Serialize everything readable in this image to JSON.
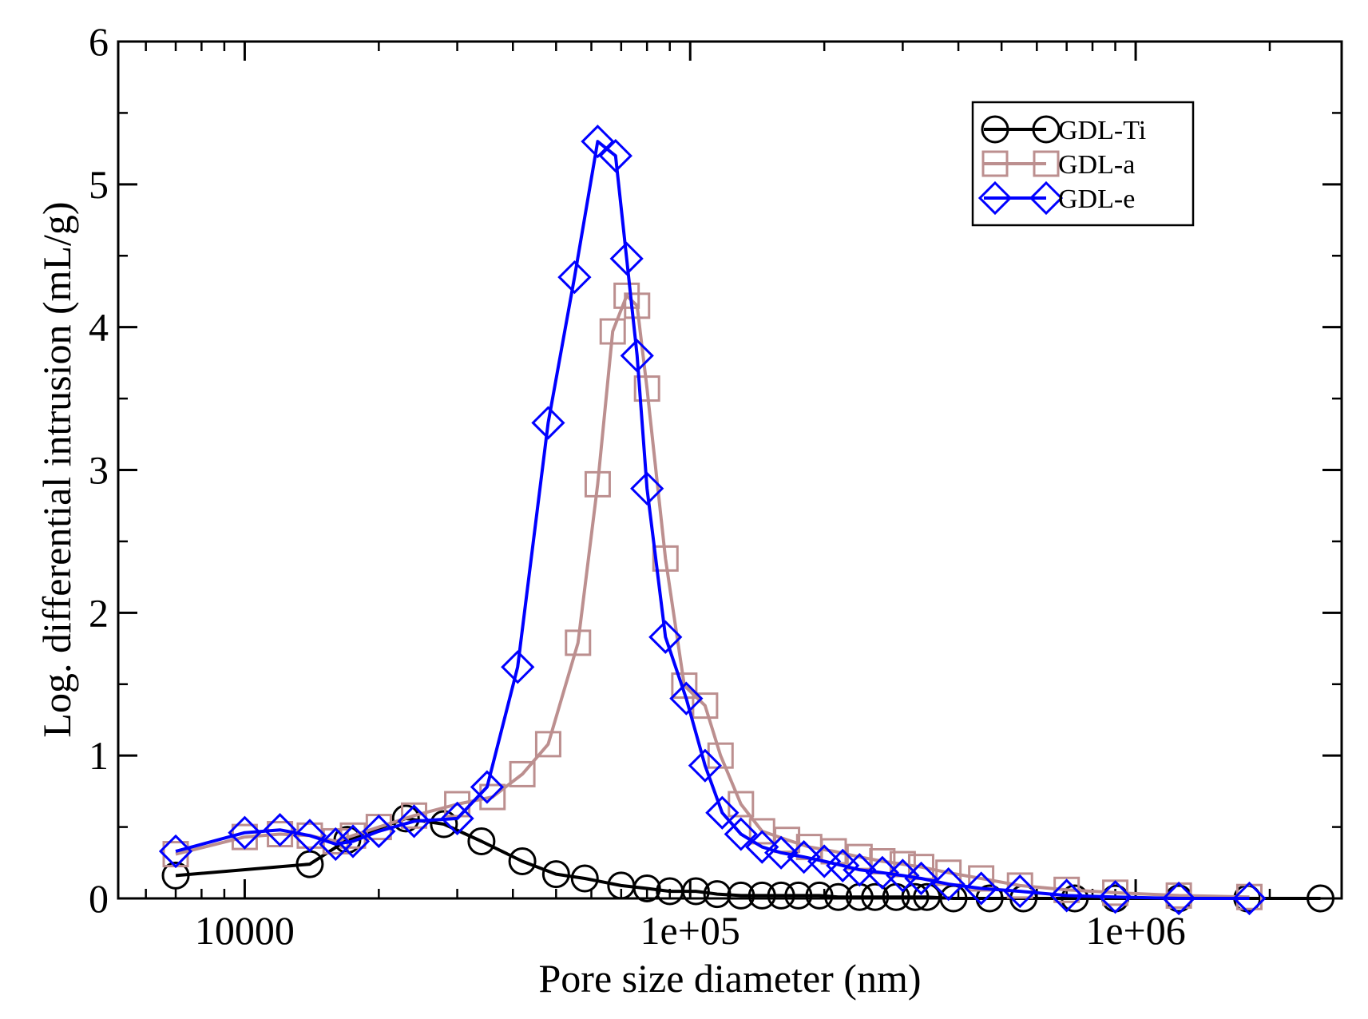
{
  "chart_data": {
    "type": "line",
    "title": "",
    "xlabel": "Pore size diameter (nm)",
    "ylabel": "Log. differential intrusion (mL/g)",
    "xscale": "log",
    "xlim": [
      5200,
      2900000
    ],
    "ylim": [
      0,
      6
    ],
    "xticks": [
      {
        "value": 10000,
        "label": "10000"
      },
      {
        "value": 100000,
        "label": "1e+05"
      },
      {
        "value": 1000000,
        "label": "1e+06"
      }
    ],
    "yticks": [
      {
        "value": 0,
        "label": "0"
      },
      {
        "value": 1,
        "label": "1"
      },
      {
        "value": 2,
        "label": "2"
      },
      {
        "value": 3,
        "label": "3"
      },
      {
        "value": 4,
        "label": "4"
      },
      {
        "value": 5,
        "label": "5"
      },
      {
        "value": 6,
        "label": "6"
      }
    ],
    "grid": false,
    "legend_position": "top-right",
    "series": [
      {
        "name": "GDL-Ti",
        "color": "#000000",
        "marker": "circle",
        "x": [
          7000,
          14000,
          17000,
          23000,
          28000,
          34000,
          42000,
          50000,
          58000,
          70000,
          80000,
          90000,
          103000,
          115000,
          130000,
          145000,
          160000,
          175000,
          195000,
          215000,
          240000,
          260000,
          290000,
          320000,
          340000,
          390000,
          470000,
          560000,
          730000,
          900000,
          1250000,
          1780000,
          2600000
        ],
        "y": [
          0.16,
          0.24,
          0.41,
          0.56,
          0.52,
          0.4,
          0.26,
          0.17,
          0.14,
          0.09,
          0.07,
          0.05,
          0.05,
          0.03,
          0.02,
          0.02,
          0.02,
          0.02,
          0.02,
          0.01,
          0.01,
          0.01,
          0.01,
          0.01,
          0.01,
          0.0,
          0.0,
          0.0,
          0.0,
          0.0,
          0.0,
          0.0,
          0.0
        ]
      },
      {
        "name": "GDL-a",
        "color": "#bc8f8f",
        "marker": "square",
        "x": [
          7000,
          10000,
          12000,
          14000,
          16000,
          17500,
          20000,
          24000,
          30000,
          36000,
          42000,
          48000,
          56000,
          62000,
          67000,
          72000,
          76000,
          80000,
          88000,
          97000,
          108000,
          117000,
          130000,
          145000,
          165000,
          185000,
          210000,
          240000,
          270000,
          300000,
          330000,
          380000,
          450000,
          550000,
          700000,
          900000,
          1250000,
          1800000
        ],
        "y": [
          0.31,
          0.43,
          0.45,
          0.44,
          0.4,
          0.44,
          0.5,
          0.58,
          0.66,
          0.71,
          0.87,
          1.08,
          1.79,
          2.9,
          3.97,
          4.22,
          4.15,
          3.57,
          2.38,
          1.49,
          1.35,
          1.0,
          0.66,
          0.47,
          0.41,
          0.36,
          0.33,
          0.29,
          0.26,
          0.24,
          0.22,
          0.18,
          0.14,
          0.09,
          0.06,
          0.04,
          0.02,
          0.01
        ]
      },
      {
        "name": "GDL-e",
        "color": "#0000ff",
        "marker": "diamond",
        "x": [
          7000,
          10000,
          12000,
          14000,
          16000,
          17500,
          20000,
          24000,
          30000,
          35000,
          41000,
          48000,
          55000,
          62000,
          68000,
          72000,
          76000,
          80000,
          88000,
          98000,
          108000,
          118000,
          130000,
          145000,
          160000,
          180000,
          200000,
          220000,
          240000,
          270000,
          300000,
          330000,
          380000,
          450000,
          550000,
          700000,
          900000,
          1250000,
          1800000
        ],
        "y": [
          0.33,
          0.46,
          0.48,
          0.44,
          0.38,
          0.4,
          0.47,
          0.54,
          0.56,
          0.78,
          1.62,
          3.33,
          4.35,
          5.3,
          5.2,
          4.48,
          3.8,
          2.87,
          1.83,
          1.4,
          0.93,
          0.6,
          0.45,
          0.36,
          0.32,
          0.29,
          0.26,
          0.23,
          0.2,
          0.18,
          0.16,
          0.14,
          0.1,
          0.07,
          0.05,
          0.02,
          0.01,
          0.0,
          0.0
        ]
      }
    ]
  }
}
